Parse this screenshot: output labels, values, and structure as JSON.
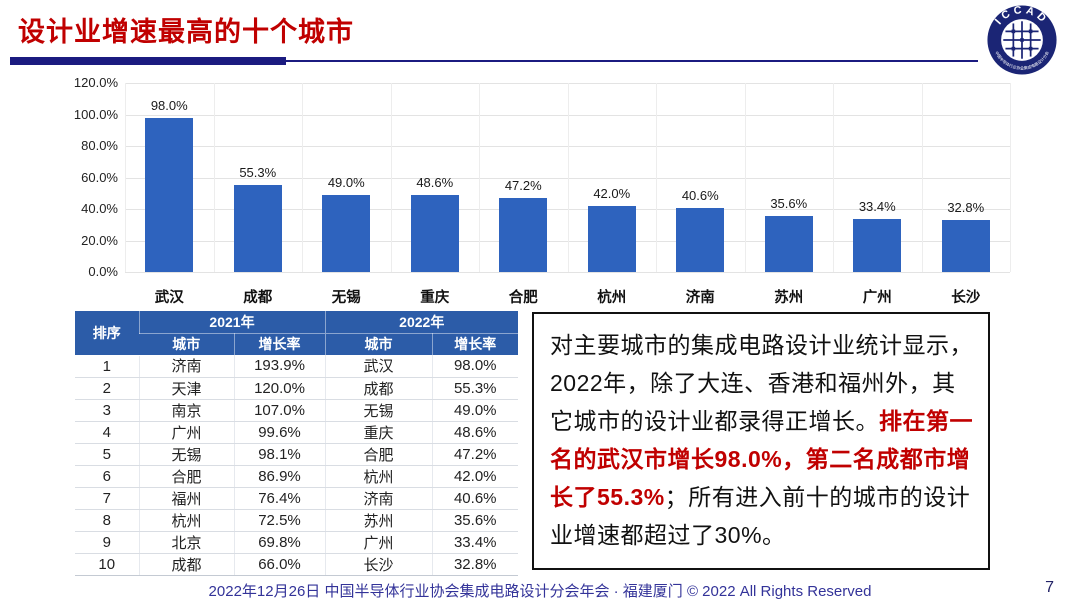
{
  "header": {
    "title": "设计业增速最高的十个城市",
    "logo_text": "ICCAD",
    "logo_subtext": "中国半导体行业协会集成电路设计分会"
  },
  "chart_data": {
    "type": "bar",
    "title": "",
    "xlabel": "",
    "ylabel": "",
    "categories": [
      "武汉",
      "成都",
      "无锡",
      "重庆",
      "合肥",
      "杭州",
      "济南",
      "苏州",
      "广州",
      "长沙"
    ],
    "values": [
      98.0,
      55.3,
      49.0,
      48.6,
      47.2,
      42.0,
      40.6,
      35.6,
      33.4,
      32.8
    ],
    "value_labels": [
      "98.0%",
      "55.3%",
      "49.0%",
      "48.6%",
      "47.2%",
      "42.0%",
      "40.6%",
      "35.6%",
      "33.4%",
      "32.8%"
    ],
    "ylim": [
      0,
      120
    ],
    "yticks": [
      "120.0%",
      "100.0%",
      "80.0%",
      "60.0%",
      "40.0%",
      "20.0%",
      "0.0%"
    ],
    "grid": true,
    "legend": "none",
    "bar_color": "#2E63BE"
  },
  "table": {
    "rank_header": "排序",
    "year_headers": [
      "2021年",
      "2022年"
    ],
    "sub_headers": [
      "城市",
      "增长率",
      "城市",
      "增长率"
    ],
    "rows": [
      [
        "1",
        "济南",
        "193.9%",
        "武汉",
        "98.0%"
      ],
      [
        "2",
        "天津",
        "120.0%",
        "成都",
        "55.3%"
      ],
      [
        "3",
        "南京",
        "107.0%",
        "无锡",
        "49.0%"
      ],
      [
        "4",
        "广州",
        "99.6%",
        "重庆",
        "48.6%"
      ],
      [
        "5",
        "无锡",
        "98.1%",
        "合肥",
        "47.2%"
      ],
      [
        "6",
        "合肥",
        "86.9%",
        "杭州",
        "42.0%"
      ],
      [
        "7",
        "福州",
        "76.4%",
        "济南",
        "40.6%"
      ],
      [
        "8",
        "杭州",
        "72.5%",
        "苏州",
        "35.6%"
      ],
      [
        "9",
        "北京",
        "69.8%",
        "广州",
        "33.4%"
      ],
      [
        "10",
        "成都",
        "66.0%",
        "长沙",
        "32.8%"
      ]
    ]
  },
  "note": {
    "segments": [
      {
        "text": "对主要城市的集成电路设计业统计显示，2022年，除了大连、香港和福州外，其它城市的设计业都录得正增长。",
        "emphasis": false
      },
      {
        "text": "排在第一名的武汉市增长98.0%，第二名成都市增长了55.3%",
        "emphasis": true
      },
      {
        "text": "；所有进入前十的城市的设计业增速都超过了30%。",
        "emphasis": false
      }
    ]
  },
  "footer": {
    "text": "2022年12月26日 中国半导体行业协会集成电路设计分会年会 · 福建厦门 © 2022 All Rights Reserved",
    "page_number": "7"
  },
  "colors": {
    "title_red": "#C00000",
    "rule_navy": "#1B1B80",
    "bar_blue": "#2E63BE",
    "table_header_blue": "#2C5CA8",
    "footer_blue": "#333399",
    "emphasis_red": "#C00000"
  }
}
